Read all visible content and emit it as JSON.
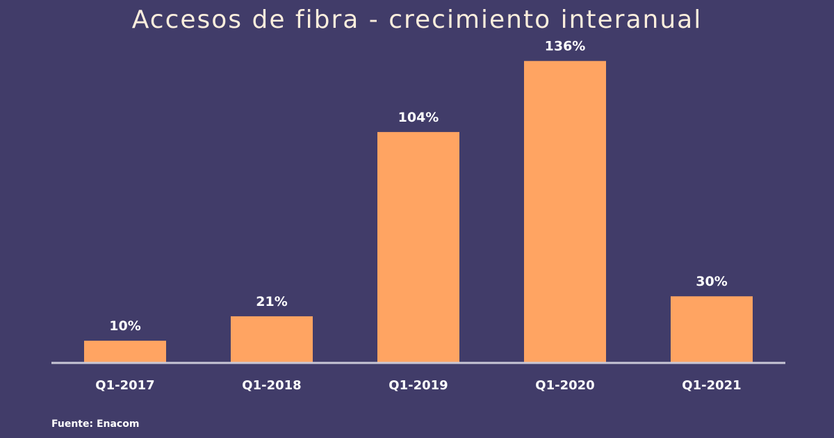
{
  "chart_data": {
    "type": "bar",
    "title": "Accesos de fibra - crecimiento interanual",
    "categories": [
      "Q1-2017",
      "Q1-2018",
      "Q1-2019",
      "Q1-2020",
      "Q1-2021"
    ],
    "values": [
      10,
      21,
      104,
      136,
      30
    ],
    "data_labels": [
      "10%",
      "21%",
      "104%",
      "136%",
      "30%"
    ],
    "unit": "%",
    "ylim": [
      0,
      150
    ],
    "grid": false,
    "legend": "none",
    "bar_color": "#ffa462",
    "background_color": "#413c69",
    "axis_color": "#c9c7d6",
    "label_color": "#ffffff"
  },
  "footer": {
    "source": "Fuente: Enacom"
  }
}
